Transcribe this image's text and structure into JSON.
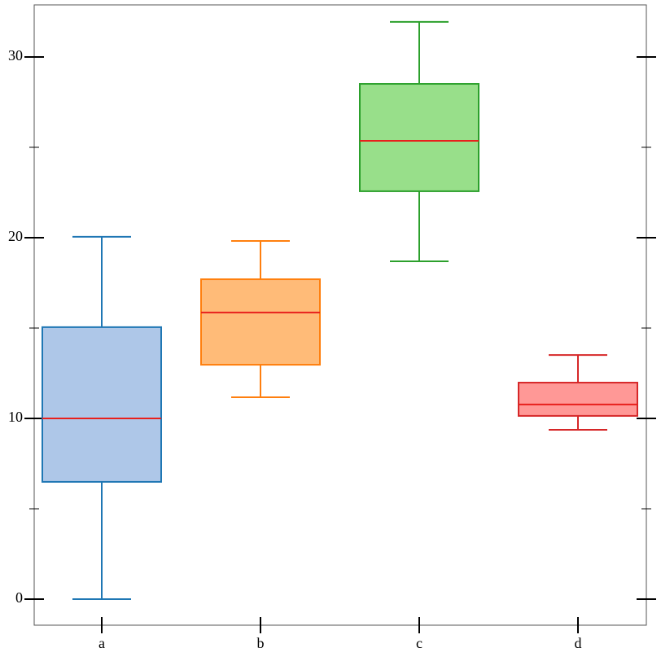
{
  "chart_data": {
    "type": "box",
    "categories": [
      "a",
      "b",
      "c",
      "d"
    ],
    "stats": [
      {
        "whisker_low": 0,
        "q1": 6.49,
        "median": 10,
        "q3": 15.05,
        "whisker_high": 20.05
      },
      {
        "whisker_low": 11.17,
        "q1": 12.97,
        "median": 15.86,
        "q3": 17.7,
        "whisker_high": 19.82
      },
      {
        "whisker_low": 18.69,
        "q1": 22.57,
        "median": 25.36,
        "q3": 28.51,
        "whisker_high": 31.94
      },
      {
        "whisker_low": 9.37,
        "q1": 10.14,
        "median": 10.77,
        "q3": 11.98,
        "whisker_high": 13.51
      }
    ],
    "fill_colors": [
      "#aec7e8",
      "#ffbb78",
      "#98df8a",
      "#ff9896"
    ],
    "edge_colors": [
      "#1f77b4",
      "#ff7f0e",
      "#2ca02c",
      "#d62728"
    ],
    "median_color": "#e8201c",
    "ylim": [
      -1.44,
      32.88
    ],
    "yticks": [
      0,
      10,
      20,
      30
    ],
    "minor_yticks": [
      5,
      15,
      25
    ]
  }
}
